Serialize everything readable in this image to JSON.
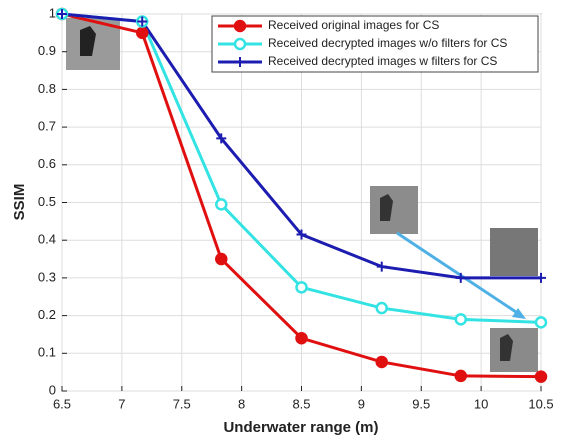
{
  "chart_data": {
    "type": "line",
    "x_label": "Underwater range (m)",
    "y_label": "SSIM",
    "x": [
      6.5,
      7.17,
      7.83,
      8.5,
      9.17,
      9.83,
      10.5
    ],
    "series": [
      {
        "name": "Received original images for CS",
        "color": "#e01010",
        "marker": "circle-filled",
        "values": [
          1,
          0.95,
          0.35,
          0.14,
          0.077,
          0.04,
          0.038
        ]
      },
      {
        "name": "Received decrypted images w/o filters for CS",
        "color": "#33e3e3",
        "marker": "circle-open",
        "values": [
          1,
          0.98,
          0.495,
          0.275,
          0.22,
          0.19,
          0.182
        ]
      },
      {
        "name": "Received decrypted images w filters for CS",
        "color": "#1c1cb0",
        "marker": "plus",
        "values": [
          1,
          0.98,
          0.67,
          0.415,
          0.33,
          0.3,
          0.3
        ]
      }
    ],
    "xlim": [
      6.5,
      10.5
    ],
    "xticks": [
      6.5,
      7,
      7.5,
      8,
      8.5,
      9,
      9.5,
      10,
      10.5
    ],
    "ylim": [
      0,
      1
    ],
    "yticks": [
      0,
      0.1,
      0.2,
      0.3,
      0.4,
      0.5,
      0.6,
      0.7,
      0.8,
      0.9,
      1
    ],
    "grid": true,
    "legend": "upper right"
  }
}
